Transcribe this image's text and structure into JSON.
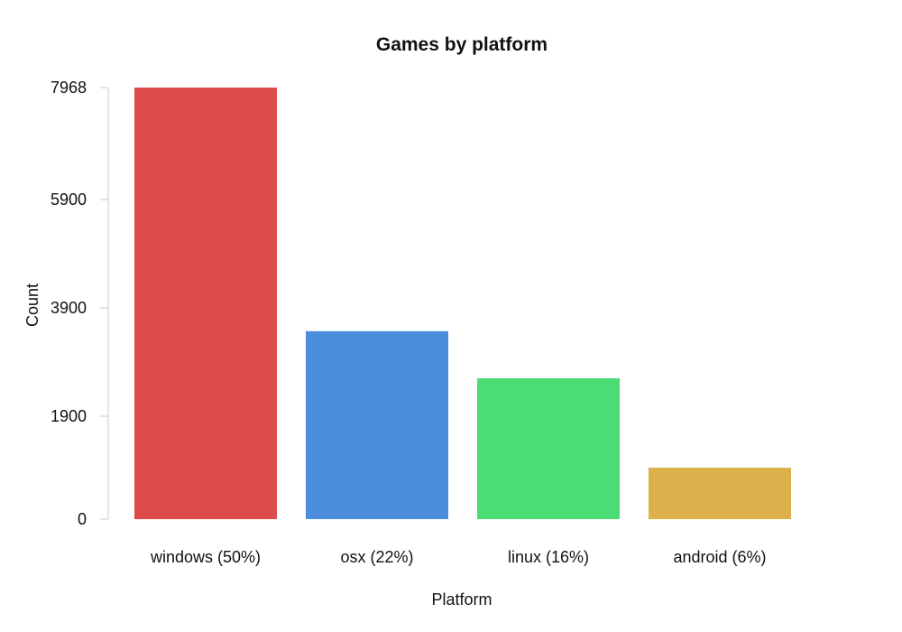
{
  "chart_data": {
    "type": "bar",
    "title": "Games by platform",
    "xlabel": "Platform",
    "ylabel": "Count",
    "categories": [
      "windows (50%)",
      "osx (22%)",
      "linux (16%)",
      "android (6%)"
    ],
    "values": [
      7968,
      3470,
      2600,
      950
    ],
    "colors": [
      "#dc4b4b",
      "#4b8fdc",
      "#4bdc73",
      "#dcb14b"
    ],
    "ylim": [
      0,
      7968
    ],
    "yticks": [
      0,
      1900,
      3900,
      5900,
      7968
    ],
    "ytick_labels": [
      "0",
      "1900",
      "3900",
      "5900",
      "7968"
    ],
    "grid": false,
    "legend": "none"
  }
}
